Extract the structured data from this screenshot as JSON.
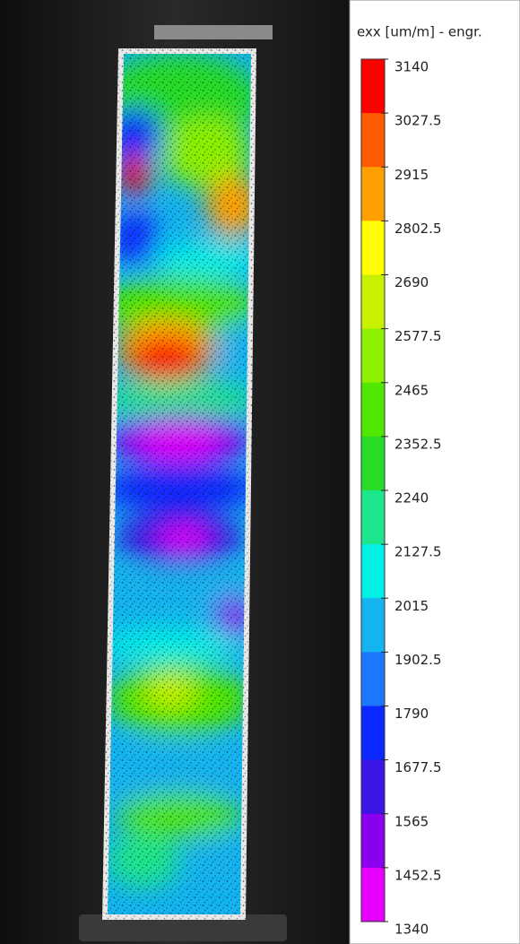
{
  "colorbar": {
    "title": "exx [um/m] - engr.",
    "ticks": [
      3140,
      3027.5,
      2915,
      2802.5,
      2690,
      2577.5,
      2465,
      2352.5,
      2240,
      2127.5,
      2015,
      1902.5,
      1790,
      1677.5,
      1565,
      1452.5,
      1340
    ],
    "colors": [
      "#ff0000",
      "#ff5a00",
      "#ffa000",
      "#ffff00",
      "#c8f000",
      "#8cf000",
      "#50e600",
      "#28dc28",
      "#1ee68c",
      "#00f0e6",
      "#14b4f0",
      "#1e78ff",
      "#0a28ff",
      "#3c14e6",
      "#8c00f0",
      "#e600ff"
    ]
  }
}
